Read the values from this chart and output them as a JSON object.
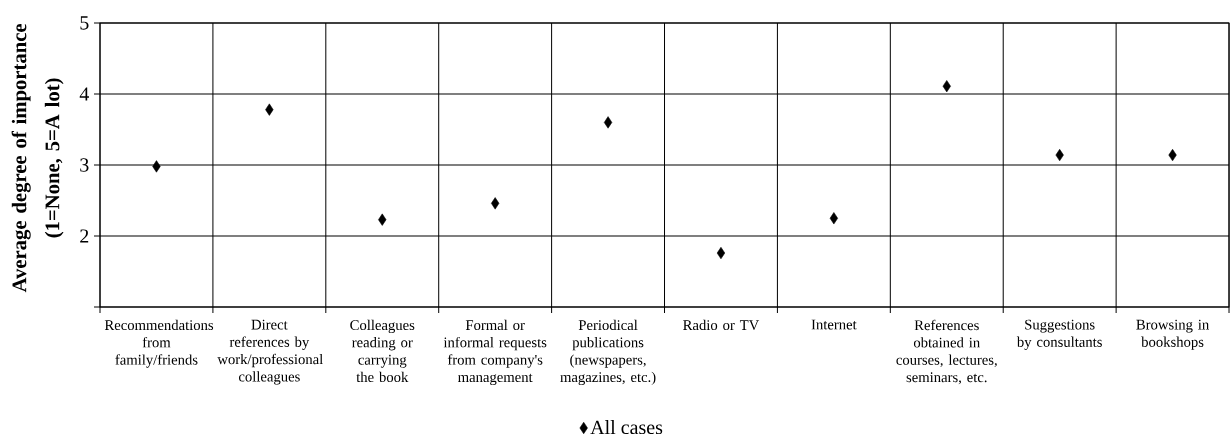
{
  "chart_data": {
    "type": "scatter",
    "ylabel": "Average degree of importance (1=None, 5=A lot)",
    "categories": [
      "Recommendations from family/friends",
      "Direct references by work/professional colleagues",
      "Colleagues reading or carrying the book",
      "Formal or informal requests from company's management",
      "Periodical publications (newspapers, magazines, etc.)",
      "Radio or TV",
      "Internet",
      "References obtained in courses, lectures, seminars, etc.",
      "Suggestions by consultants",
      "Browsing in bookshops"
    ],
    "series": [
      {
        "name": "All cases",
        "color": "#000000",
        "values": [
          2.98,
          3.78,
          2.23,
          2.46,
          3.6,
          1.76,
          2.25,
          4.11,
          3.14,
          3.14
        ]
      }
    ],
    "ylim": [
      1,
      5
    ],
    "yticks": [
      {
        "value": 1,
        "label": null
      },
      2,
      3,
      4,
      5
    ],
    "grid": true,
    "legend": "bottom",
    "marker": "diamond"
  }
}
